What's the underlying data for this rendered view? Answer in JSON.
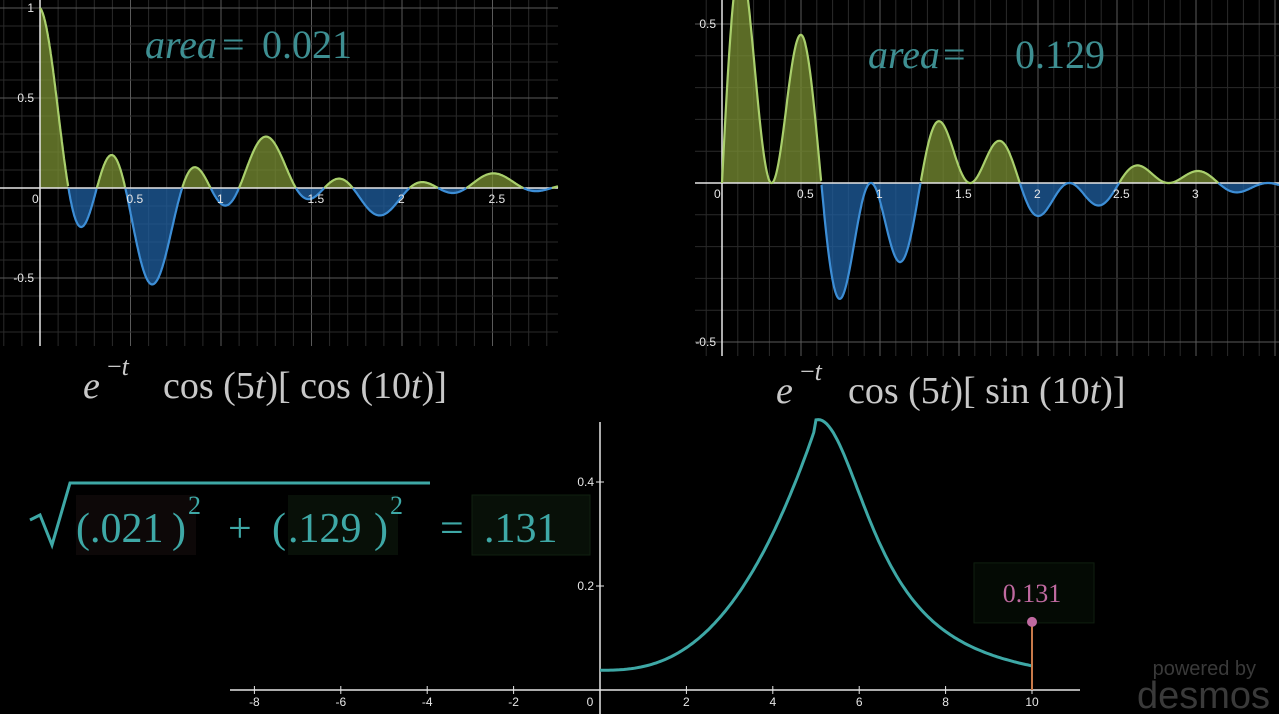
{
  "panels": [
    {
      "id": "cos",
      "area_label": "area = 0.021",
      "area_var": "area",
      "area_value": "0.021",
      "formula_label": "e^{-t} cos(5t)[cos(10t)]",
      "chart_data": {
        "type": "area",
        "function": "e^(-t)·cos(5t)·cos(10t)",
        "x_ticks": [
          "0",
          "0.5",
          "1",
          "1.5",
          "2",
          "2.5"
        ],
        "y_ticks": [
          "1",
          "0.5",
          "-0.5"
        ],
        "xlim": [
          -0.05,
          2.9
        ],
        "ylim": [
          -0.65,
          1.03
        ],
        "fill_positive_color": "#7a8f33",
        "fill_negative_color": "#1f5fa0",
        "grid": true
      }
    },
    {
      "id": "sin",
      "area_label": "area = 0.129",
      "area_var": "area",
      "area_value": "0.129",
      "formula_label": "e^{-t} cos(5t)[sin(10t)]",
      "chart_data": {
        "type": "area",
        "function": "e^(-t)·cos(5t)·sin(10t)",
        "x_ticks": [
          "0",
          "0.5",
          "1",
          "1.5",
          "2",
          "2.5",
          "3"
        ],
        "y_ticks": [
          "0.5",
          "-0.5"
        ],
        "xlim": [
          -0.05,
          3.0
        ],
        "ylim": [
          -0.55,
          0.56
        ],
        "fill_positive_color": "#7a8f33",
        "fill_negative_color": "#1f5fa0",
        "grid": true
      }
    }
  ],
  "magnitude": {
    "term1": ".021",
    "term2": ".129",
    "exp": "2",
    "result": ".131"
  },
  "bottom_chart": {
    "chart_data": {
      "type": "line",
      "function": "magnitude of Fourier coefficient vs frequency",
      "x_ticks": [
        "-8",
        "-6",
        "-4",
        "-2",
        "0",
        "2",
        "4",
        "6",
        "8",
        "10"
      ],
      "y_ticks": [
        "0.2",
        "0.4"
      ],
      "xlim": [
        -8.5,
        11.2
      ],
      "ylim": [
        0,
        0.5
      ],
      "points": [
        [
          0,
          0.038
        ],
        [
          1,
          0.06
        ],
        [
          2,
          0.1
        ],
        [
          3,
          0.18
        ],
        [
          4,
          0.33
        ],
        [
          5,
          0.5
        ],
        [
          6,
          0.33
        ],
        [
          7,
          0.22
        ],
        [
          8,
          0.17
        ],
        [
          9,
          0.145
        ],
        [
          10,
          0.131
        ]
      ],
      "marked_point": {
        "x": 10,
        "y": 0.131,
        "label": "0.131"
      },
      "curve_color": "#3ea8a6",
      "point_color": "#c06aa0",
      "stem_color": "#c87a4a"
    }
  },
  "watermark": {
    "line1": "powered by",
    "line2": "desmos"
  }
}
